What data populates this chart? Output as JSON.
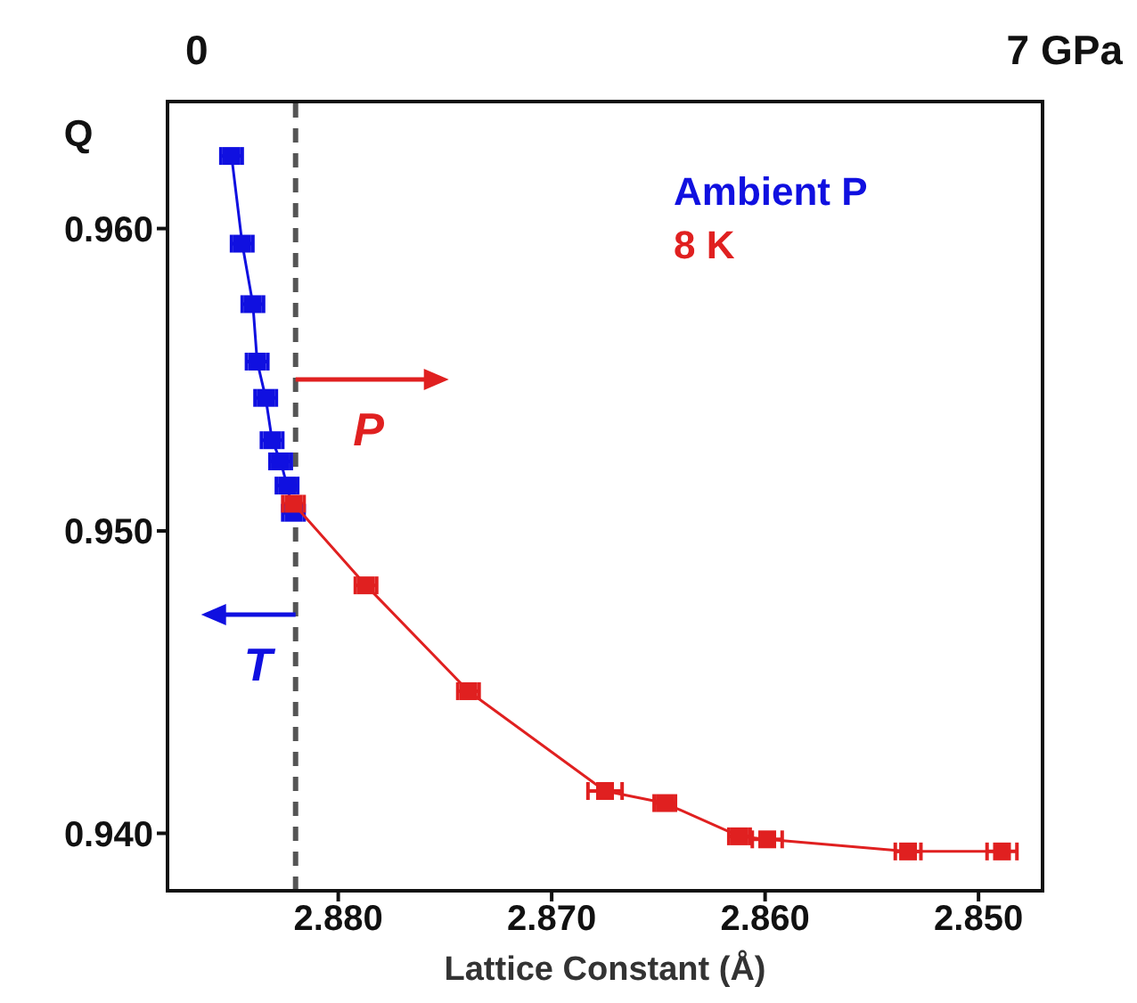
{
  "chart_data": {
    "type": "scatter",
    "xlabel": "Lattice Constant (Å)",
    "ylabel": "Q",
    "xlim": [
      2.888,
      2.847
    ],
    "xticks": [
      {
        "value": 2.88,
        "label": "2.880"
      },
      {
        "value": 2.87,
        "label": "2.870"
      },
      {
        "value": 2.86,
        "label": "2.860"
      },
      {
        "value": 2.85,
        "label": "2.850"
      }
    ],
    "ylim": [
      0.9381,
      0.9642
    ],
    "yticks": [
      {
        "value": 0.94,
        "label": "0.940"
      },
      {
        "value": 0.95,
        "label": "0.950"
      },
      {
        "value": 0.96,
        "label": "0.960"
      }
    ],
    "marker": "square",
    "legend": "top right",
    "series": [
      {
        "name": "Ambient P",
        "type": "line",
        "color": "#1010e0",
        "x": [
          2.885,
          2.8845,
          2.884,
          2.8838,
          2.8834,
          2.8831,
          2.8827,
          2.8824,
          2.8821
        ],
        "values": [
          0.9624,
          0.9595,
          0.9575,
          0.9556,
          0.9544,
          0.953,
          0.9523,
          0.9515,
          0.9506
        ],
        "xerrors": [
          0.0005,
          0.0005,
          0.0005,
          0.0005,
          0.0005,
          0.0005,
          0.0005,
          0.0005,
          0.0005
        ]
      },
      {
        "name": "8 K",
        "type": "line",
        "color": "#e02020",
        "x": [
          2.8821,
          2.8787,
          2.8739,
          2.8675,
          2.8647,
          2.8612,
          2.8599,
          2.8533,
          2.8489
        ],
        "values": [
          0.9509,
          0.9482,
          0.9447,
          0.9414,
          0.941,
          0.9399,
          0.9398,
          0.9394,
          0.9394
        ],
        "xerrors": [
          0.0005,
          0.0005,
          0.0005,
          0.0008,
          0.0005,
          0.0005,
          0.0007,
          0.0006,
          0.0007
        ]
      }
    ],
    "ref_lines": [
      {
        "axis": "x",
        "value": 2.882,
        "color": "#555555",
        "line_style": "dashed"
      }
    ],
    "annotations": [
      "0",
      "7 GPa",
      "P",
      "T"
    ]
  }
}
